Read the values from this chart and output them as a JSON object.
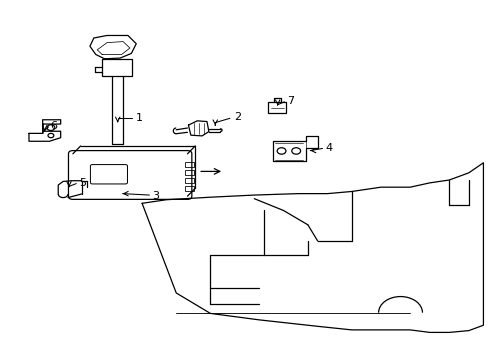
{
  "background_color": "#ffffff",
  "line_color": "#000000",
  "label_color": "#000000",
  "fig_width": 4.89,
  "fig_height": 3.6,
  "dpi": 100
}
